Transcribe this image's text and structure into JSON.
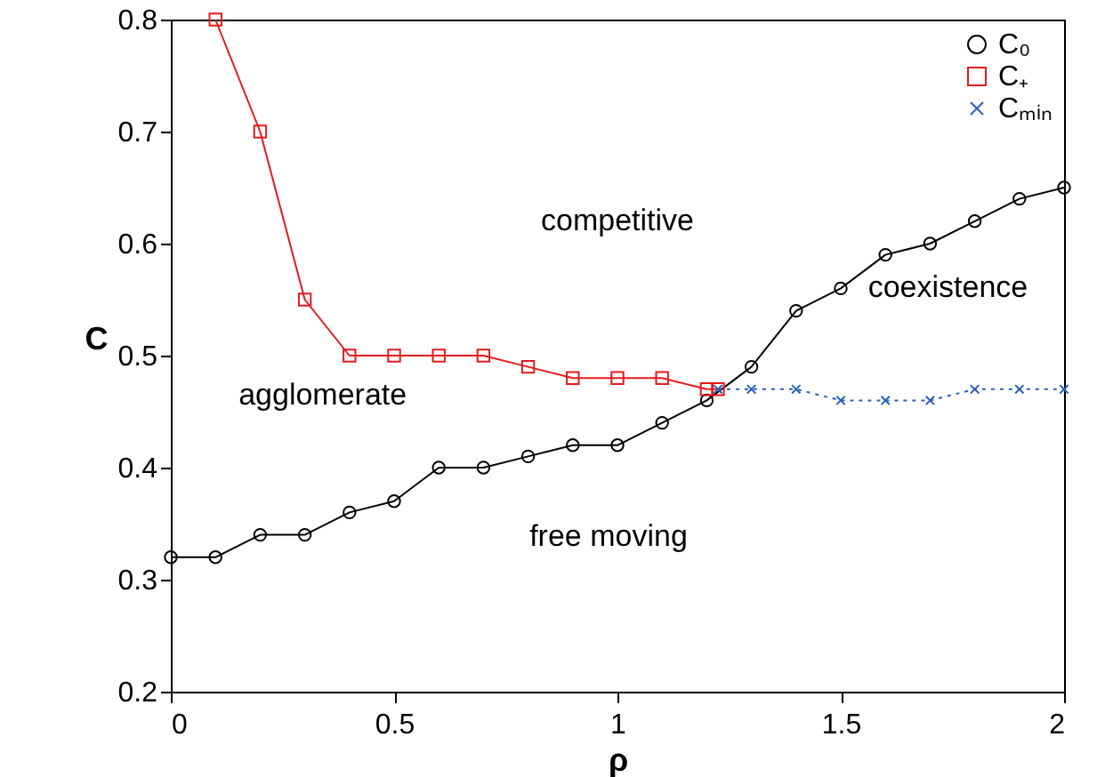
{
  "chart_data": {
    "type": "line",
    "xlabel": "ρ",
    "ylabel": "C",
    "xlim": [
      0,
      2
    ],
    "xticks": [
      0,
      0.5,
      1,
      1.5,
      2
    ],
    "ylim": [
      0.2,
      0.8
    ],
    "yticks": [
      0.2,
      0.3,
      0.4,
      0.5,
      0.6,
      0.7,
      0.8
    ],
    "grid": false,
    "legend": "top right",
    "series": [
      {
        "name": "C₀",
        "color": "#000000",
        "marker": "circle",
        "line_style": "solid",
        "x": [
          0,
          0.1,
          0.2,
          0.3,
          0.4,
          0.5,
          0.6,
          0.7,
          0.8,
          0.9,
          1.0,
          1.1,
          1.2,
          1.3,
          1.4,
          1.5,
          1.6,
          1.7,
          1.8,
          1.9,
          2.0
        ],
        "values": [
          0.32,
          0.32,
          0.34,
          0.34,
          0.36,
          0.37,
          0.4,
          0.4,
          0.41,
          0.42,
          0.42,
          0.44,
          0.46,
          0.49,
          0.54,
          0.56,
          0.59,
          0.6,
          0.62,
          0.64,
          0.65
        ]
      },
      {
        "name": "C₊",
        "color": "#e41a1c",
        "marker": "square",
        "line_style": "solid",
        "x": [
          0.1,
          0.2,
          0.3,
          0.4,
          0.5,
          0.6,
          0.7,
          0.8,
          0.9,
          1.0,
          1.1,
          1.2,
          1.225
        ],
        "values": [
          0.8,
          0.7,
          0.55,
          0.5,
          0.5,
          0.5,
          0.5,
          0.49,
          0.48,
          0.48,
          0.48,
          0.47,
          0.47
        ]
      },
      {
        "name": "Cₘᵢₙ",
        "color": "#2c5fb8",
        "marker": "cross",
        "line_style": "dotted",
        "x": [
          1.225,
          1.3,
          1.4,
          1.5,
          1.6,
          1.7,
          1.8,
          1.9,
          2.0
        ],
        "values": [
          0.47,
          0.47,
          0.47,
          0.46,
          0.46,
          0.46,
          0.47,
          0.47,
          0.47
        ]
      }
    ],
    "annotations": [
      "competitive",
      "coexistence",
      "agglomerate",
      "free moving"
    ]
  }
}
